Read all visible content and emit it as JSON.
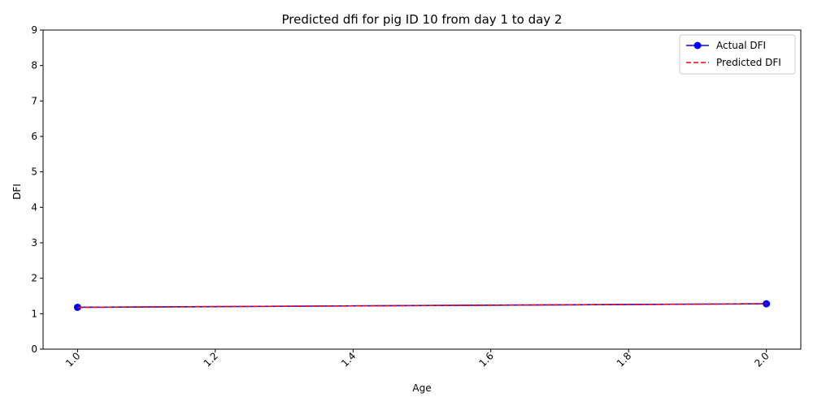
{
  "chart_data": {
    "type": "line",
    "title": "Predicted dfi for pig ID 10 from day 1 to day 2",
    "xlabel": "Age",
    "ylabel": "DFI",
    "xlim": [
      0.95,
      2.05
    ],
    "ylim": [
      0,
      9
    ],
    "xticks": [
      1.0,
      1.2,
      1.4,
      1.6,
      1.8,
      2.0
    ],
    "xtick_labels": [
      "1.0",
      "1.2",
      "1.4",
      "1.6",
      "1.8",
      "2.0"
    ],
    "yticks": [
      0,
      1,
      2,
      3,
      4,
      5,
      6,
      7,
      8,
      9
    ],
    "ytick_labels": [
      "0",
      "1",
      "2",
      "3",
      "4",
      "5",
      "6",
      "7",
      "8",
      "9"
    ],
    "grid": false,
    "legend_position": "top-right",
    "series": [
      {
        "name": "Actual DFI",
        "color": "#0000ff",
        "style": "solid",
        "marker": "circle",
        "x": [
          1.0,
          2.0
        ],
        "y": [
          1.18,
          1.28
        ]
      },
      {
        "name": "Predicted DFI",
        "color": "#ff0000",
        "style": "dashed",
        "marker": "none",
        "x": [
          1.0,
          2.0
        ],
        "y": [
          1.18,
          1.28
        ]
      }
    ]
  }
}
